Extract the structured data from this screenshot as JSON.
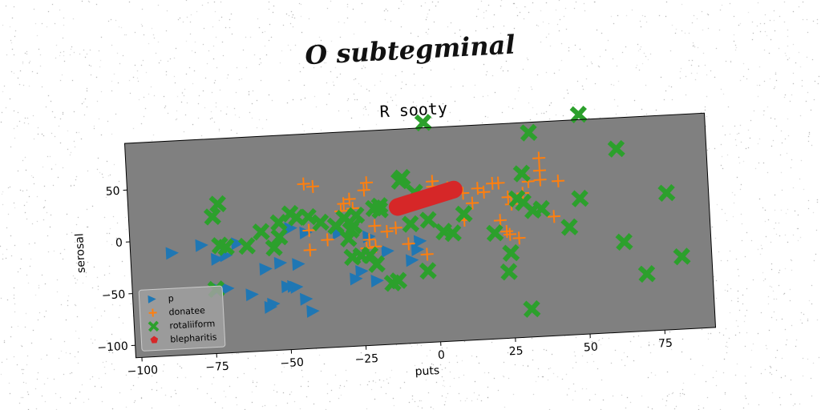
{
  "figure": {
    "suptitle": "O subtegminal"
  },
  "chart_data": {
    "type": "scatter",
    "title": "R sooty",
    "xlabel": "puts",
    "ylabel": "serosal",
    "xlim": [
      -102,
      92
    ],
    "ylim": [
      -112,
      95
    ],
    "xticks": [
      -100,
      -75,
      -50,
      -25,
      0,
      25,
      50,
      75
    ],
    "yticks": [
      -100,
      -50,
      0,
      50
    ],
    "xtick_labels": [
      "−100",
      "−75",
      "−50",
      "−25",
      "0",
      "25",
      "50",
      "75"
    ],
    "ytick_labels": [
      "−100",
      "−50",
      "0",
      "50"
    ],
    "grid": false,
    "background": "#808080",
    "legend_position": "lower-left",
    "series": [
      {
        "name": "p",
        "marker": "triangle-right",
        "color": "#1f77b4",
        "points": [
          [
            -88,
            -13
          ],
          [
            -78,
            -7
          ],
          [
            -73,
            -21
          ],
          [
            -70,
            -18
          ],
          [
            -66,
            -7
          ],
          [
            -57,
            -33
          ],
          [
            -52,
            -28
          ],
          [
            -62,
            -57
          ],
          [
            -55,
            -67
          ],
          [
            -56,
            -70
          ],
          [
            -47,
            -52
          ],
          [
            -48,
            -51
          ],
          [
            -50,
            -51
          ],
          [
            -46,
            -30
          ],
          [
            -44,
            -64
          ],
          [
            -42,
            -76
          ],
          [
            -48,
            5
          ],
          [
            -43,
            0
          ],
          [
            -32,
            -2
          ],
          [
            -27,
            -47
          ],
          [
            -25,
            -40
          ],
          [
            -20,
            -50
          ],
          [
            -22,
            -7
          ],
          [
            -16,
            -22
          ],
          [
            -8,
            -32
          ],
          [
            -5,
            -14
          ],
          [
            -6,
            -22
          ],
          [
            -73,
            -50
          ],
          [
            -70,
            -50
          ]
        ]
      },
      {
        "name": "donatee",
        "marker": "plus",
        "color": "#ff7f0e",
        "points": [
          [
            -43,
            47
          ],
          [
            -40,
            44
          ],
          [
            -28,
            30
          ],
          [
            -30,
            26
          ],
          [
            -27,
            21
          ],
          [
            -42,
            2
          ],
          [
            -42,
            -17
          ],
          [
            -36,
            -8
          ],
          [
            -22,
            -10
          ],
          [
            -20,
            -17
          ],
          [
            -23,
            -18
          ],
          [
            -22,
            45
          ],
          [
            -23,
            38
          ],
          [
            -16,
            -3
          ],
          [
            -13,
            0
          ],
          [
            -9,
            -16
          ],
          [
            -3,
            -27
          ],
          [
            0,
            38
          ],
          [
            0,
            43
          ],
          [
            5,
            36
          ],
          [
            10,
            30
          ],
          [
            13,
            20
          ],
          [
            15,
            34
          ],
          [
            17,
            30
          ],
          [
            20,
            38
          ],
          [
            22,
            38
          ],
          [
            25,
            24
          ],
          [
            24,
            -9
          ],
          [
            25,
            -12
          ],
          [
            28,
            -16
          ],
          [
            26,
            17
          ],
          [
            30,
            27
          ],
          [
            32,
            38
          ],
          [
            36,
            48
          ],
          [
            36,
            60
          ],
          [
            36,
            39
          ],
          [
            42,
            37
          ],
          [
            40,
            3
          ],
          [
            22,
            2
          ],
          [
            10,
            4
          ],
          [
            -20,
            3
          ],
          [
            -31,
            19
          ],
          [
            -10,
            22
          ]
        ]
      },
      {
        "name": "rotaliiform",
        "marker": "x-thick",
        "color": "#2ca02c",
        "points": [
          [
            -2,
            100
          ],
          [
            50,
            100
          ],
          [
            33,
            85
          ],
          [
            62,
            65
          ],
          [
            78,
            20
          ],
          [
            82,
            -42
          ],
          [
            70,
            -57
          ],
          [
            63,
            -25
          ],
          [
            45,
            -8
          ],
          [
            49,
            19
          ],
          [
            30,
            46
          ],
          [
            28,
            22
          ],
          [
            30,
            18
          ],
          [
            36,
            11
          ],
          [
            33,
            10
          ],
          [
            20,
            -10
          ],
          [
            25,
            -30
          ],
          [
            24,
            -48
          ],
          [
            31,
            -85
          ],
          [
            3,
            -6
          ],
          [
            6,
            -8
          ],
          [
            10,
            10
          ],
          [
            -2,
            6
          ],
          [
            -6,
            33
          ],
          [
            -13,
            -51
          ],
          [
            -15,
            -53
          ],
          [
            -3,
            -43
          ],
          [
            -8,
            3
          ],
          [
            -10,
            48
          ],
          [
            -11,
            45
          ],
          [
            -18,
            22
          ],
          [
            -18,
            18
          ],
          [
            -20,
            20
          ],
          [
            -26,
            14
          ],
          [
            -27,
            4
          ],
          [
            -28,
            0
          ],
          [
            -29,
            -8
          ],
          [
            -25,
            -25
          ],
          [
            -22,
            -25
          ],
          [
            -28,
            -26
          ],
          [
            -20,
            -34
          ],
          [
            -30,
            12
          ],
          [
            -33,
            5
          ],
          [
            -38,
            9
          ],
          [
            -42,
            15
          ],
          [
            -46,
            15
          ],
          [
            -48,
            19
          ],
          [
            -52,
            11
          ],
          [
            -54,
            -13
          ],
          [
            -52,
            -3
          ],
          [
            -58,
            3
          ],
          [
            -63,
            -10
          ],
          [
            -70,
            -10
          ],
          [
            -72,
            -8
          ],
          [
            -74,
            20
          ],
          [
            -72,
            32
          ],
          [
            -74,
            -50
          ]
        ]
      },
      {
        "name": "blepharitis",
        "marker": "pentagon",
        "color": "#d62728",
        "segment": {
          "x": [
            -12,
            7
          ],
          "y": [
            20,
            34
          ]
        }
      }
    ]
  }
}
